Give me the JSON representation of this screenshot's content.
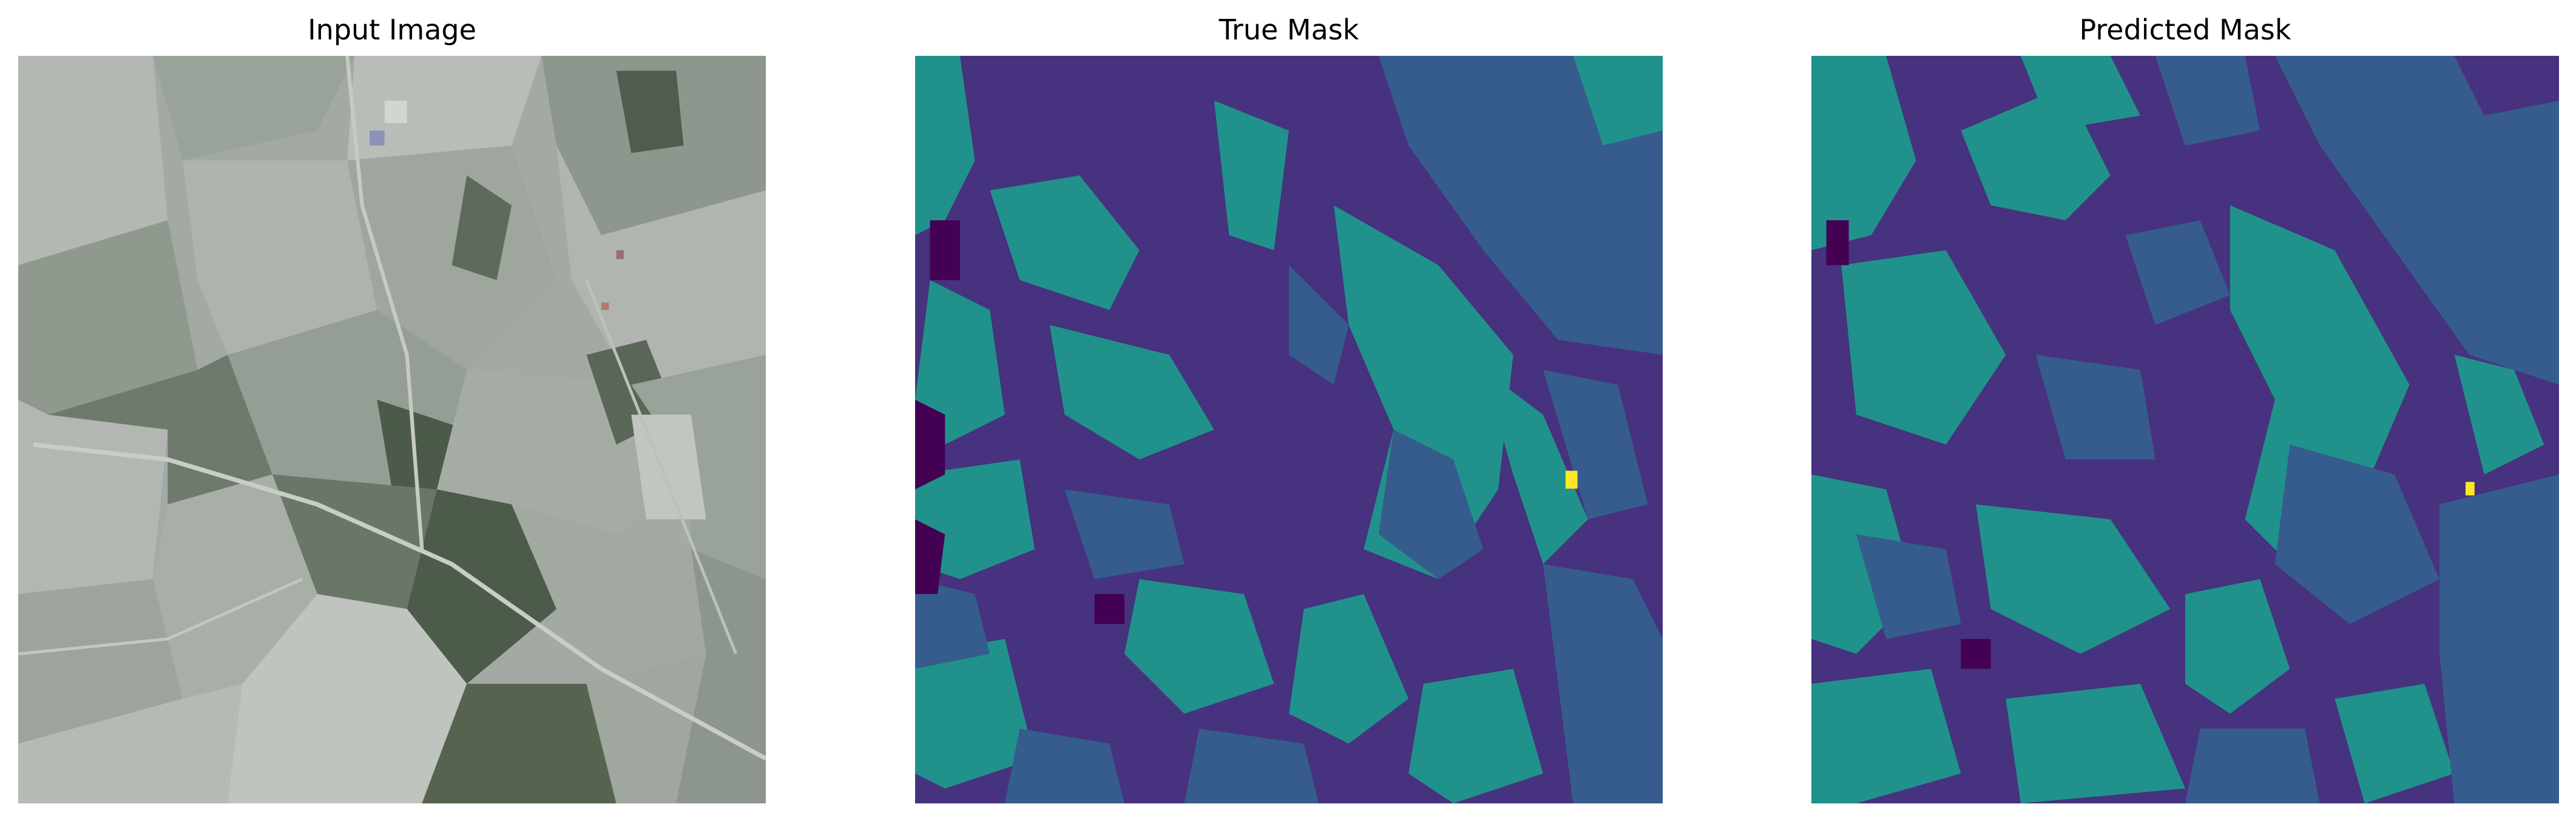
{
  "figure": {
    "panels": [
      {
        "id": "input",
        "title": "Input Image",
        "content": "aerial photograph of agricultural fields"
      },
      {
        "id": "true",
        "title": "True Mask",
        "content": "segmentation mask"
      },
      {
        "id": "pred",
        "title": "Predicted Mask",
        "content": "segmentation mask"
      }
    ]
  },
  "colors": {
    "mask_class_0": "#440154",
    "mask_class_1": "#46327e",
    "mask_class_2": "#365c8d",
    "mask_class_3": "#21918c",
    "mask_class_4": "#fde725",
    "photo_light": "#a9b0aa",
    "photo_mid": "#8d958e",
    "photo_dark": "#4d5a4b"
  }
}
